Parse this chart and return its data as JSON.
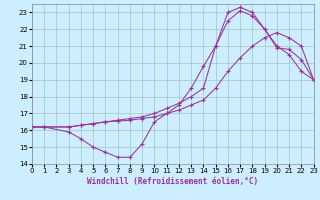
{
  "xlabel": "Windchill (Refroidissement éolien,°C)",
  "bg_color": "#cceeff",
  "grid_color": "#aacccc",
  "line_color": "#993399",
  "xlim": [
    0,
    23
  ],
  "ylim": [
    14,
    23.5
  ],
  "xticks": [
    0,
    1,
    2,
    3,
    4,
    5,
    6,
    7,
    8,
    9,
    10,
    11,
    12,
    13,
    14,
    15,
    16,
    17,
    18,
    19,
    20,
    21,
    22,
    23
  ],
  "yticks": [
    14,
    15,
    16,
    17,
    18,
    19,
    20,
    21,
    22,
    23
  ],
  "curve1_x": [
    0,
    1,
    3,
    4,
    5,
    6,
    7,
    8,
    9,
    10,
    11,
    12,
    13,
    14,
    15,
    16,
    17,
    18,
    19,
    20,
    21,
    22,
    23
  ],
  "curve1_y": [
    16.2,
    16.2,
    15.9,
    15.5,
    15.0,
    14.7,
    14.4,
    14.4,
    15.2,
    16.5,
    17.0,
    17.5,
    18.5,
    19.8,
    21.0,
    23.0,
    23.3,
    23.0,
    22.0,
    21.0,
    20.5,
    19.5,
    19.0
  ],
  "curve2_x": [
    0,
    1,
    3,
    4,
    5,
    6,
    7,
    8,
    9,
    10,
    11,
    12,
    13,
    14,
    15,
    16,
    17,
    18,
    19,
    20,
    21,
    22,
    23
  ],
  "curve2_y": [
    16.2,
    16.2,
    16.2,
    16.3,
    16.4,
    16.5,
    16.6,
    16.7,
    16.8,
    17.0,
    17.3,
    17.6,
    18.0,
    18.5,
    21.0,
    22.5,
    23.1,
    22.8,
    22.0,
    20.9,
    20.8,
    20.2,
    19.0
  ],
  "curve3_x": [
    0,
    1,
    3,
    4,
    5,
    6,
    7,
    8,
    9,
    10,
    11,
    12,
    13,
    14,
    15,
    16,
    17,
    18,
    19,
    20,
    21,
    22,
    23
  ],
  "curve3_y": [
    16.2,
    16.2,
    16.2,
    16.3,
    16.4,
    16.5,
    16.55,
    16.6,
    16.7,
    16.8,
    17.0,
    17.2,
    17.5,
    17.8,
    18.5,
    19.5,
    20.3,
    21.0,
    21.5,
    21.8,
    21.5,
    21.0,
    19.0
  ]
}
